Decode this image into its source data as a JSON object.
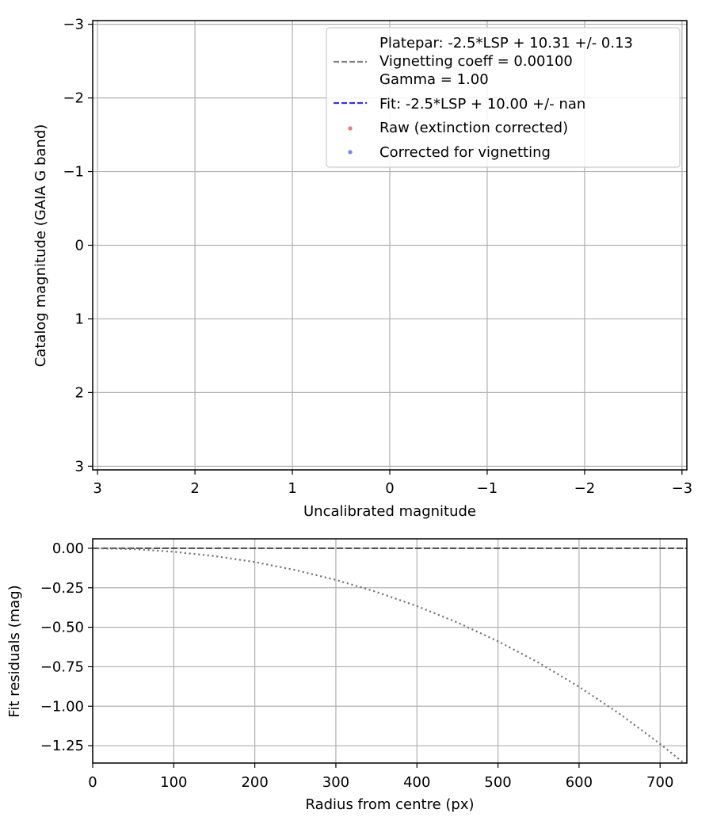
{
  "chart_data": [
    {
      "type": "scatter",
      "xlabel": "Uncalibrated magnitude",
      "ylabel": "Catalog magnitude (GAIA G band)",
      "xlim": [
        3.05,
        -3.05
      ],
      "ylim": [
        3.05,
        -3.05
      ],
      "x_ticks": [
        3,
        2,
        1,
        0,
        -1,
        -2,
        -3
      ],
      "y_ticks": [
        -3,
        -2,
        -1,
        0,
        1,
        2,
        3
      ],
      "x_tick_labels": [
        "3",
        "2",
        "1",
        "0",
        "−1",
        "−2",
        "−3"
      ],
      "y_tick_labels": [
        "−3",
        "−2",
        "−1",
        "0",
        "1",
        "2",
        "3"
      ],
      "grid": true,
      "legend_position": "upper-right",
      "series": [
        {
          "name": "Platepar: -2.5*LSP + 10.31 +/- 0.13",
          "legend_extra": [
            "Vignetting coeff = 0.00100",
            "Gamma = 1.00"
          ],
          "style": "dashed",
          "color": "#808080",
          "values": []
        },
        {
          "name": "Fit: -2.5*LSP + 10.00 +/- nan",
          "style": "dashed",
          "color": "#3333ee",
          "values": []
        },
        {
          "name": "Raw (extinction corrected)",
          "style": "marker",
          "color": "#ee5555",
          "values": []
        },
        {
          "name": "Corrected for vignetting",
          "style": "marker",
          "color": "#5566ee",
          "values": []
        }
      ]
    },
    {
      "type": "line",
      "xlabel": "Radius from centre (px)",
      "ylabel": "Fit residuals (mag)",
      "xlim": [
        0,
        733
      ],
      "ylim": [
        -1.36,
        0.06
      ],
      "x_ticks": [
        0,
        100,
        200,
        300,
        400,
        500,
        600,
        700
      ],
      "y_ticks": [
        0.0,
        -0.25,
        -0.5,
        -0.75,
        -1.0,
        -1.25
      ],
      "x_tick_labels": [
        "0",
        "100",
        "200",
        "300",
        "400",
        "500",
        "600",
        "700"
      ],
      "y_tick_labels": [
        "0.00",
        "−0.25",
        "−0.50",
        "−0.75",
        "−1.00",
        "−1.25"
      ],
      "grid": true,
      "series": [
        {
          "style": "dashed",
          "color": "#555555",
          "x": [
            0,
            733
          ],
          "y": [
            0,
            0
          ]
        },
        {
          "style": "dotted",
          "color": "#777777",
          "x": [
            0,
            50,
            100,
            150,
            200,
            250,
            300,
            350,
            400,
            450,
            500,
            550,
            600,
            650,
            700,
            733
          ],
          "y": [
            0,
            -0.005,
            -0.022,
            -0.049,
            -0.087,
            -0.138,
            -0.2,
            -0.276,
            -0.366,
            -0.47,
            -0.589,
            -0.724,
            -0.877,
            -1.048,
            -1.239,
            -1.375
          ]
        }
      ]
    }
  ]
}
